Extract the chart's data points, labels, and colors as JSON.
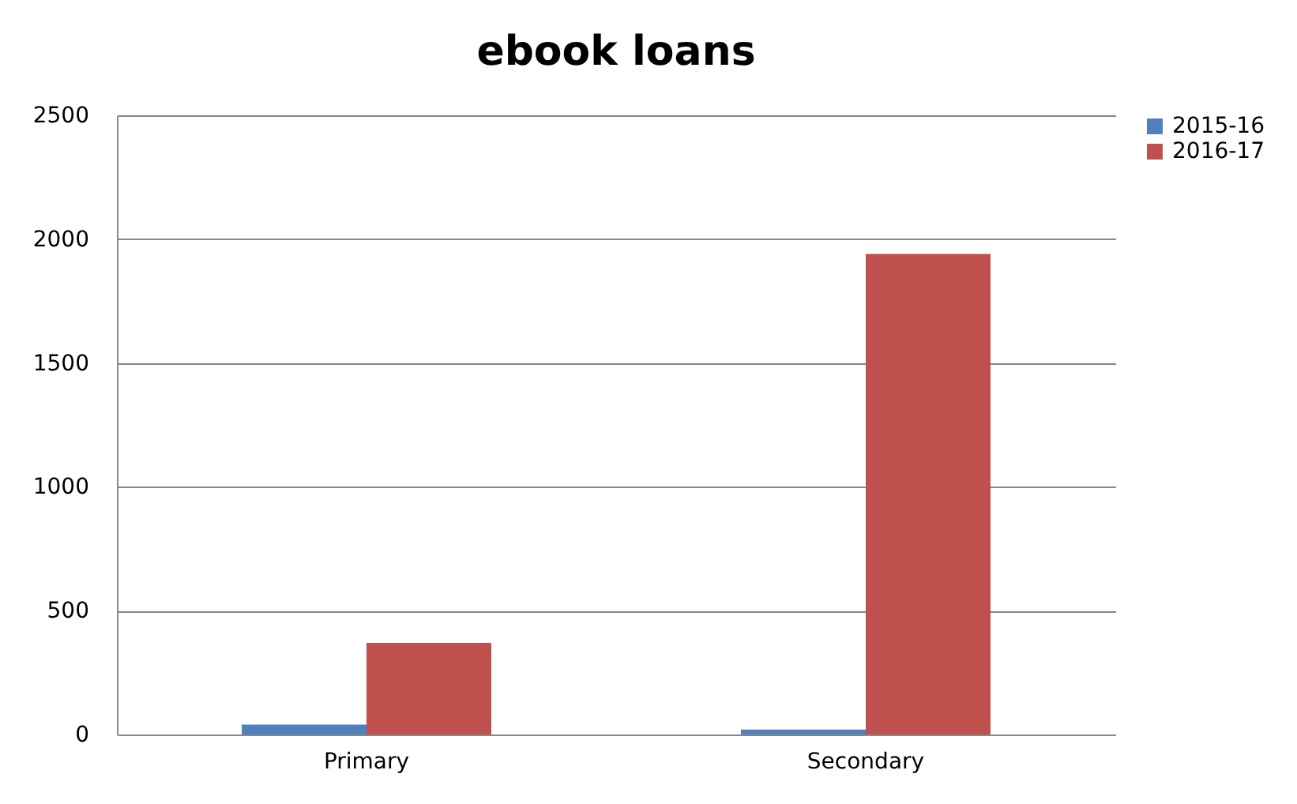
{
  "chart_data": {
    "type": "bar",
    "title": "ebook loans",
    "categories": [
      "Primary",
      "Secondary"
    ],
    "series": [
      {
        "name": "2015-16",
        "color": "#4f81bd",
        "values": [
          40,
          20
        ]
      },
      {
        "name": "2016-17",
        "color": "#c0504d",
        "values": [
          370,
          1940
        ]
      }
    ],
    "ylim": [
      0,
      2500
    ],
    "yticks": [
      0,
      500,
      1000,
      1500,
      2000,
      2500
    ],
    "grid": "y",
    "legend": "right"
  }
}
